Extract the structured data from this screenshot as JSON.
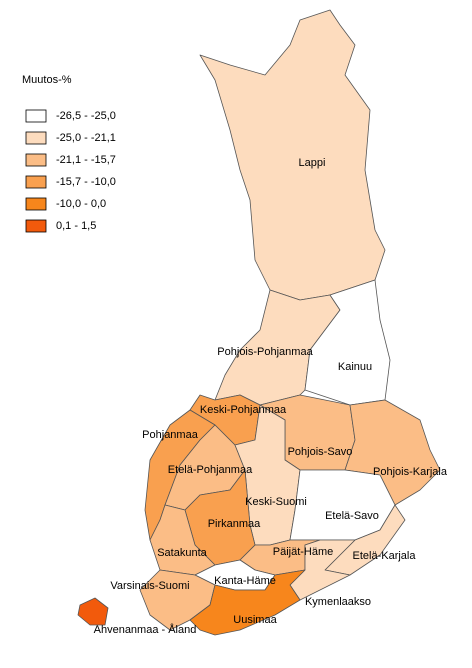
{
  "legend": {
    "title": "Muutos-%",
    "classes": [
      {
        "label": "-26,5 - -25,0",
        "color": "#ffffff"
      },
      {
        "label": "-25,0 - -21,1",
        "color": "#fddcbe"
      },
      {
        "label": "-21,1 - -15,7",
        "color": "#fbbd86"
      },
      {
        "label": "-15,7 - -10,0",
        "color": "#f9a04f"
      },
      {
        "label": "-10,0 - 0,0",
        "color": "#f7861c"
      },
      {
        "label": "0,1 - 1,5",
        "color": "#f25a0c"
      }
    ]
  },
  "regions": [
    {
      "name": "Lappi",
      "color": "#fddcbe"
    },
    {
      "name": "Pohjois-Pohjanmaa",
      "color": "#fddcbe"
    },
    {
      "name": "Kainuu",
      "color": "#ffffff"
    },
    {
      "name": "Keski-Pohjanmaa",
      "color": "#f9a04f"
    },
    {
      "name": "Pohjanmaa",
      "color": "#f9a04f"
    },
    {
      "name": "Etelä-Pohjanmaa",
      "color": "#fbbd86"
    },
    {
      "name": "Pohjois-Savo",
      "color": "#fbbd86"
    },
    {
      "name": "Pohjois-Karjala",
      "color": "#fbbd86"
    },
    {
      "name": "Keski-Suomi",
      "color": "#fddcbe"
    },
    {
      "name": "Etelä-Savo",
      "color": "#ffffff"
    },
    {
      "name": "Pirkanmaa",
      "color": "#f9a04f"
    },
    {
      "name": "Satakunta",
      "color": "#fbbd86"
    },
    {
      "name": "Päijät-Häme",
      "color": "#fbbd86"
    },
    {
      "name": "Kanta-Häme",
      "color": "#ffffff"
    },
    {
      "name": "Etelä-Karjala",
      "color": "#fddcbe"
    },
    {
      "name": "Kymenlaakso",
      "color": "#fddcbe"
    },
    {
      "name": "Varsinais-Suomi",
      "color": "#fbbd86"
    },
    {
      "name": "Uusimaa",
      "color": "#f7861c"
    },
    {
      "name": "Ahvenanmaa - Åland",
      "color": "#f25a0c"
    }
  ]
}
